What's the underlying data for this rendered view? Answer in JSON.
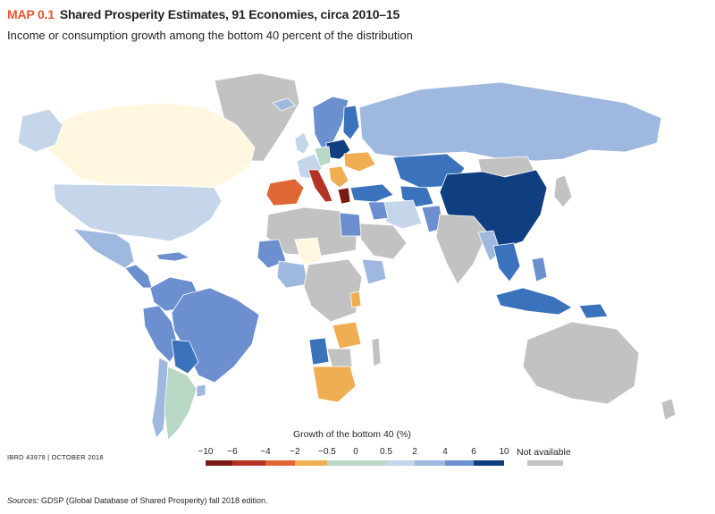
{
  "header": {
    "map_number": "MAP 0.1",
    "title": "Shared Prosperity Estimates, 91 Economies, circa 2010–15",
    "subtitle": "Income or consumption growth among the bottom 40 percent of the distribution"
  },
  "colors": {
    "bin_lt_-6": "#7b1a14",
    "bin_-6_-4": "#b33425",
    "bin_-4_-2": "#e06733",
    "bin_-2_-0.5": "#f0ae52",
    "bin_-0.5_0.5": "#b9d7c5",
    "bin_0.5_2": "#c5d5ea",
    "bin_2_4": "#9fb8e0",
    "bin_4_6": "#6b8fcf",
    "bin_6_10": "#3a72bc",
    "bin_gt_10": "#0f3f80",
    "not_available": "#c2c2c2",
    "near_zero_pale": "#fff7df",
    "ocean": "#ffffff"
  },
  "legend": {
    "title": "Growth of the bottom 40 (%)",
    "ticks": [
      "−10",
      "−6",
      "−4",
      "−2",
      "−0.5",
      "0",
      "0.5",
      "2",
      "4",
      "6",
      "10"
    ],
    "not_available": "Not available"
  },
  "footer": {
    "ibrd": "IBRD 43979  |  OCTOBER 2018",
    "sources_label": "Sources:",
    "sources_text": "GDSP (Global Database of Shared Prosperity) fall 2018 edition."
  }
}
